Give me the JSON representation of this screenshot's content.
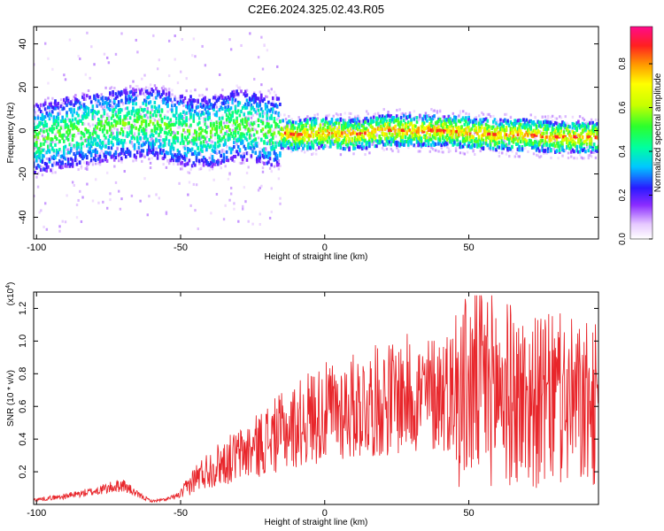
{
  "chart_data": [
    {
      "type": "heatmap",
      "title": "C2E6.2024.325.02.43.R05",
      "xlabel": "Height of straight line (km)",
      "ylabel": "Frequency (Hz)",
      "xlim": [
        -101,
        95
      ],
      "ylim": [
        -50,
        48
      ],
      "x_ticks": [
        -100,
        -50,
        0,
        50
      ],
      "y_ticks": [
        -40,
        -20,
        0,
        20,
        40
      ],
      "colorbar": {
        "label": "Normalized spectral amplitude",
        "range": [
          0.0,
          0.97
        ],
        "ticks": [
          0.0,
          0.2,
          0.4,
          0.6,
          0.8
        ],
        "tick_labels": [
          "0.0",
          "0.2",
          "0.4",
          "0.6",
          "0.8"
        ]
      },
      "ridge": [
        {
          "x": -100,
          "f": -4
        },
        {
          "x": -90,
          "f": -1
        },
        {
          "x": -80,
          "f": 1
        },
        {
          "x": -70,
          "f": 3
        },
        {
          "x": -60,
          "f": 4
        },
        {
          "x": -50,
          "f": 0
        },
        {
          "x": -40,
          "f": -1
        },
        {
          "x": -30,
          "f": 3
        },
        {
          "x": -20,
          "f": 0
        },
        {
          "x": -10,
          "f": -2
        },
        {
          "x": 0,
          "f": -1
        },
        {
          "x": 10,
          "f": -2
        },
        {
          "x": 20,
          "f": 0
        },
        {
          "x": 30,
          "f": 0
        },
        {
          "x": 40,
          "f": 0
        },
        {
          "x": 50,
          "f": -1
        },
        {
          "x": 60,
          "f": -2
        },
        {
          "x": 70,
          "f": -2
        },
        {
          "x": 80,
          "f": -3
        },
        {
          "x": 95,
          "f": -3
        }
      ],
      "grid": false
    },
    {
      "type": "line",
      "xlabel": "Height of straight line (km)",
      "ylabel": "SNR (10 * v/v)",
      "y_scale_note": "(x10",
      "y_scale_exp": "4",
      "xlim": [
        -101,
        95
      ],
      "ylim": [
        0.0,
        1.3
      ],
      "x_ticks": [
        -100,
        -50,
        0,
        50
      ],
      "y_ticks": [
        0.2,
        0.4,
        0.6,
        0.8,
        1.0,
        1.2
      ],
      "y_tick_labels": [
        "0.2",
        "0.4",
        "0.6",
        "0.8",
        "1.0",
        "1.2"
      ],
      "series": [
        {
          "color": "#e8262b",
          "x": [
            -100,
            -90,
            -80,
            -70,
            -65,
            -60,
            -55,
            -50,
            -45,
            -40,
            -35,
            -30,
            -25,
            -20,
            -15,
            -10,
            -5,
            0,
            5,
            10,
            15,
            20,
            25,
            30,
            35,
            40,
            45,
            50,
            55,
            60,
            65,
            70,
            75,
            80,
            85,
            90,
            95
          ],
          "values": [
            0.03,
            0.05,
            0.08,
            0.12,
            0.06,
            0.02,
            0.03,
            0.06,
            0.16,
            0.22,
            0.26,
            0.3,
            0.34,
            0.4,
            0.44,
            0.48,
            0.54,
            0.56,
            0.58,
            0.6,
            0.62,
            0.64,
            0.66,
            0.68,
            0.66,
            0.7,
            0.7,
            0.7,
            0.74,
            0.72,
            0.66,
            0.64,
            0.62,
            0.64,
            0.62,
            0.6,
            0.6
          ]
        }
      ],
      "grid": false
    }
  ]
}
